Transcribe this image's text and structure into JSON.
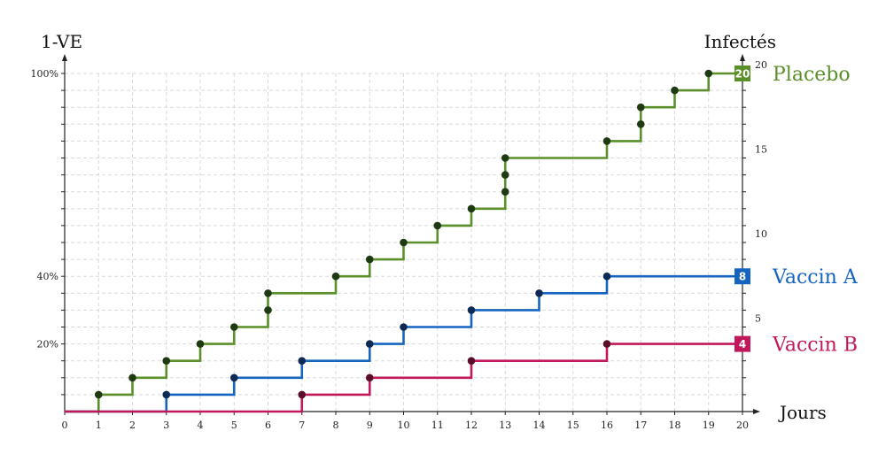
{
  "chart_data": {
    "type": "line",
    "step": true,
    "xlabel": "Jours",
    "left_axis_label": "1-VE",
    "right_axis_label": "Infectés",
    "xlim": [
      0,
      20
    ],
    "ylim": [
      0,
      20
    ],
    "x_ticks": [
      0,
      1,
      2,
      3,
      4,
      5,
      6,
      7,
      8,
      9,
      10,
      11,
      12,
      13,
      14,
      15,
      16,
      17,
      18,
      19,
      20
    ],
    "right_ticks": [
      {
        "value": 5,
        "label": "5"
      },
      {
        "value": 10,
        "label": "10"
      },
      {
        "value": 15,
        "label": "15"
      },
      {
        "value": 20,
        "label": "20"
      }
    ],
    "left_ticks": [
      {
        "value": 4,
        "label": "20%"
      },
      {
        "value": 8,
        "label": "40%"
      },
      {
        "value": 20,
        "label": "100%"
      }
    ],
    "grid": true,
    "series": [
      {
        "name": "Placebo",
        "color": "#5a8f29",
        "dot_color": "#1e3a12",
        "final_count": "20",
        "events": [
          [
            1,
            1
          ],
          [
            2,
            2
          ],
          [
            3,
            3
          ],
          [
            4,
            4
          ],
          [
            5,
            5
          ],
          [
            6,
            6
          ],
          [
            6,
            7
          ],
          [
            8,
            8
          ],
          [
            9,
            9
          ],
          [
            10,
            10
          ],
          [
            11,
            11
          ],
          [
            12,
            12
          ],
          [
            13,
            13
          ],
          [
            13,
            14
          ],
          [
            13,
            15
          ],
          [
            16,
            16
          ],
          [
            17,
            17
          ],
          [
            17,
            18
          ],
          [
            18,
            19
          ],
          [
            19,
            20
          ]
        ]
      },
      {
        "name": "Vaccin A",
        "color": "#1565c0",
        "dot_color": "#0d2a55",
        "final_count": "8",
        "events": [
          [
            3,
            1
          ],
          [
            5,
            2
          ],
          [
            7,
            3
          ],
          [
            9,
            4
          ],
          [
            10,
            5
          ],
          [
            12,
            6
          ],
          [
            14,
            7
          ],
          [
            16,
            8
          ]
        ]
      },
      {
        "name": "Vaccin B",
        "color": "#c2185b",
        "dot_color": "#5a0e2a",
        "final_count": "4",
        "events": [
          [
            7,
            1
          ],
          [
            9,
            2
          ],
          [
            12,
            3
          ],
          [
            16,
            4
          ]
        ]
      }
    ]
  }
}
